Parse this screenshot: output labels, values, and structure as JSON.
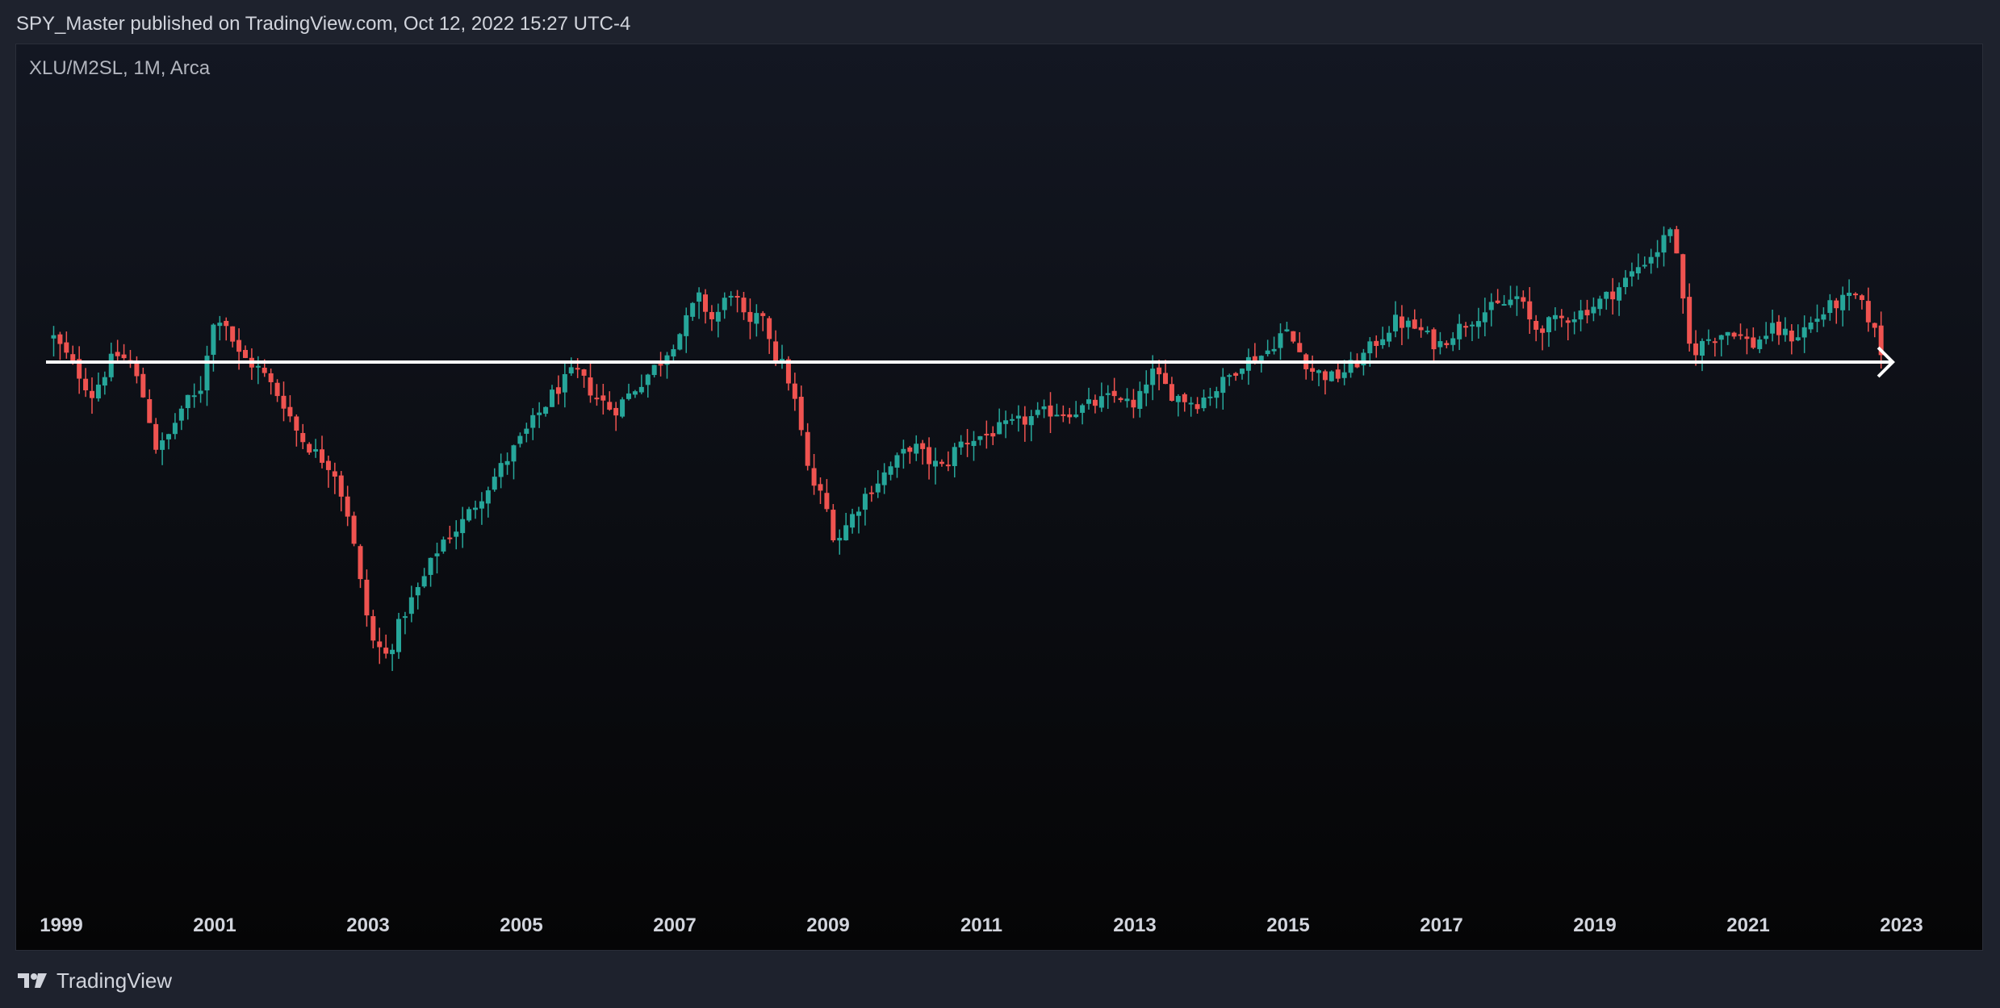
{
  "header": {
    "text": "SPY_Master published on TradingView.com, Oct 12, 2022 15:27 UTC-4"
  },
  "chart": {
    "symbol_label": "XLU/M2SL, 1M, Arca"
  },
  "footer": {
    "brand": "TradingView"
  },
  "colors": {
    "up": "#26a69a",
    "down": "#ef5350",
    "background": "#1e222d",
    "line": "#ffffff"
  },
  "chart_data": {
    "type": "candlestick",
    "title": "XLU/M2SL, 1M, Arca",
    "xlabel": "",
    "ylabel": "",
    "x_range": [
      1998.75,
      2022.85
    ],
    "y_range_relative": [
      -0.55,
      0.27
    ],
    "tick_labels": [
      "1999",
      "2001",
      "2003",
      "2005",
      "2007",
      "2009",
      "2011",
      "2013",
      "2015",
      "2017",
      "2019",
      "2021",
      "2023"
    ],
    "tick_years": [
      1999,
      2001,
      2003,
      2005,
      2007,
      2009,
      2011,
      2013,
      2015,
      2017,
      2019,
      2021,
      2023
    ],
    "horizontal_ray": {
      "value_relative": 0.0,
      "start_year": 1998.8
    },
    "keypoints_note": "closing values relative to the horizontal line level (0 = line)",
    "keypoints": [
      [
        1998.9,
        0.03
      ],
      [
        1999.2,
        -0.01
      ],
      [
        1999.4,
        -0.04
      ],
      [
        1999.7,
        0.01
      ],
      [
        1999.9,
        0.0
      ],
      [
        2000.1,
        -0.05
      ],
      [
        2000.25,
        -0.11
      ],
      [
        2000.4,
        -0.09
      ],
      [
        2000.6,
        -0.05
      ],
      [
        2000.8,
        -0.04
      ],
      [
        2000.95,
        0.04
      ],
      [
        2001.1,
        0.06
      ],
      [
        2001.3,
        0.01
      ],
      [
        2001.6,
        -0.01
      ],
      [
        2001.9,
        -0.05
      ],
      [
        2002.1,
        -0.09
      ],
      [
        2002.3,
        -0.11
      ],
      [
        2002.55,
        -0.13
      ],
      [
        2002.75,
        -0.19
      ],
      [
        2002.9,
        -0.27
      ],
      [
        2003.05,
        -0.34
      ],
      [
        2003.25,
        -0.36
      ],
      [
        2003.45,
        -0.31
      ],
      [
        2003.7,
        -0.27
      ],
      [
        2003.95,
        -0.22
      ],
      [
        2004.2,
        -0.2
      ],
      [
        2004.5,
        -0.16
      ],
      [
        2004.8,
        -0.12
      ],
      [
        2005.1,
        -0.08
      ],
      [
        2005.4,
        -0.04
      ],
      [
        2005.7,
        -0.01
      ],
      [
        2005.95,
        -0.04
      ],
      [
        2006.2,
        -0.06
      ],
      [
        2006.5,
        -0.03
      ],
      [
        2006.8,
        0.0
      ],
      [
        2007.1,
        0.04
      ],
      [
        2007.3,
        0.08
      ],
      [
        2007.5,
        0.05
      ],
      [
        2007.75,
        0.09
      ],
      [
        2007.95,
        0.04
      ],
      [
        2008.15,
        0.06
      ],
      [
        2008.3,
        0.01
      ],
      [
        2008.45,
        -0.01
      ],
      [
        2008.6,
        -0.06
      ],
      [
        2008.75,
        -0.14
      ],
      [
        2008.95,
        -0.17
      ],
      [
        2009.1,
        -0.22
      ],
      [
        2009.3,
        -0.19
      ],
      [
        2009.5,
        -0.16
      ],
      [
        2009.7,
        -0.14
      ],
      [
        2009.9,
        -0.12
      ],
      [
        2010.1,
        -0.1
      ],
      [
        2010.3,
        -0.12
      ],
      [
        2010.5,
        -0.13
      ],
      [
        2010.7,
        -0.1
      ],
      [
        2011.0,
        -0.09
      ],
      [
        2011.3,
        -0.08
      ],
      [
        2011.6,
        -0.07
      ],
      [
        2011.9,
        -0.06
      ],
      [
        2012.2,
        -0.06
      ],
      [
        2012.5,
        -0.05
      ],
      [
        2012.8,
        -0.04
      ],
      [
        2013.0,
        -0.06
      ],
      [
        2013.2,
        -0.01
      ],
      [
        2013.5,
        -0.04
      ],
      [
        2013.8,
        -0.05
      ],
      [
        2014.1,
        -0.03
      ],
      [
        2014.4,
        0.0
      ],
      [
        2014.7,
        0.01
      ],
      [
        2014.95,
        0.04
      ],
      [
        2015.1,
        0.02
      ],
      [
        2015.3,
        -0.01
      ],
      [
        2015.6,
        -0.02
      ],
      [
        2015.9,
        0.0
      ],
      [
        2016.1,
        0.02
      ],
      [
        2016.4,
        0.05
      ],
      [
        2016.7,
        0.04
      ],
      [
        2016.95,
        0.02
      ],
      [
        2017.2,
        0.04
      ],
      [
        2017.5,
        0.06
      ],
      [
        2017.8,
        0.07
      ],
      [
        2018.0,
        0.08
      ],
      [
        2018.2,
        0.04
      ],
      [
        2018.5,
        0.05
      ],
      [
        2018.8,
        0.06
      ],
      [
        2019.0,
        0.07
      ],
      [
        2019.3,
        0.09
      ],
      [
        2019.6,
        0.12
      ],
      [
        2019.85,
        0.14
      ],
      [
        2020.0,
        0.17
      ],
      [
        2020.15,
        0.07
      ],
      [
        2020.25,
        0.01
      ],
      [
        2020.5,
        0.03
      ],
      [
        2020.8,
        0.04
      ],
      [
        2021.05,
        0.02
      ],
      [
        2021.3,
        0.04
      ],
      [
        2021.6,
        0.03
      ],
      [
        2021.85,
        0.05
      ],
      [
        2022.1,
        0.07
      ],
      [
        2022.4,
        0.08
      ],
      [
        2022.6,
        0.05
      ],
      [
        2022.78,
        0.0
      ]
    ]
  }
}
